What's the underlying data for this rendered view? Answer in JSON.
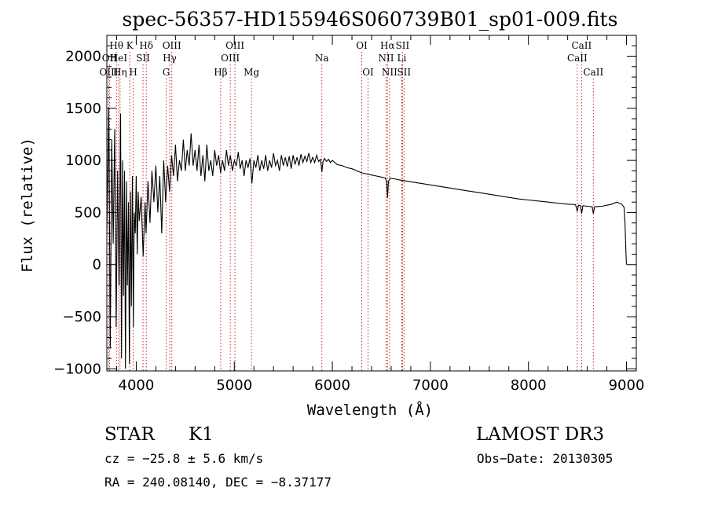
{
  "chart_data": {
    "type": "line",
    "title": "spec-56357-HD155946S060739B01_sp01-009.fits",
    "xlabel": "Wavelength (Å)",
    "ylabel": "Flux (relative)",
    "xlim": [
      3700,
      9100
    ],
    "ylim": [
      -1020,
      2200
    ],
    "xticks": [
      4000,
      5000,
      6000,
      7000,
      8000,
      9000
    ],
    "yticks": [
      -1000,
      -500,
      0,
      500,
      1000,
      1500,
      2000
    ],
    "series": [
      {
        "name": "Flux",
        "color": "#000000",
        "points": [
          [
            3700,
            300
          ],
          [
            3720,
            1500
          ],
          [
            3735,
            -800
          ],
          [
            3750,
            1200
          ],
          [
            3765,
            200
          ],
          [
            3780,
            1300
          ],
          [
            3795,
            -600
          ],
          [
            3810,
            900
          ],
          [
            3825,
            -200
          ],
          [
            3840,
            1450
          ],
          [
            3850,
            -900
          ],
          [
            3860,
            1000
          ],
          [
            3870,
            -300
          ],
          [
            3880,
            900
          ],
          [
            3890,
            -1000
          ],
          [
            3900,
            800
          ],
          [
            3910,
            -200
          ],
          [
            3920,
            600
          ],
          [
            3930,
            -950
          ],
          [
            3940,
            700
          ],
          [
            3950,
            -400
          ],
          [
            3960,
            850
          ],
          [
            3970,
            -600
          ],
          [
            3980,
            500
          ],
          [
            3990,
            300
          ],
          [
            4000,
            850
          ],
          [
            4010,
            100
          ],
          [
            4020,
            700
          ],
          [
            4030,
            420
          ],
          [
            4050,
            650
          ],
          [
            4070,
            80
          ],
          [
            4090,
            600
          ],
          [
            4100,
            300
          ],
          [
            4120,
            800
          ],
          [
            4140,
            400
          ],
          [
            4160,
            900
          ],
          [
            4180,
            600
          ],
          [
            4200,
            950
          ],
          [
            4220,
            500
          ],
          [
            4240,
            850
          ],
          [
            4260,
            300
          ],
          [
            4280,
            1000
          ],
          [
            4300,
            600
          ],
          [
            4320,
            950
          ],
          [
            4340,
            700
          ],
          [
            4360,
            1050
          ],
          [
            4380,
            850
          ],
          [
            4400,
            1150
          ],
          [
            4420,
            800
          ],
          [
            4440,
            1000
          ],
          [
            4460,
            900
          ],
          [
            4480,
            1200
          ],
          [
            4500,
            900
          ],
          [
            4520,
            1100
          ],
          [
            4540,
            950
          ],
          [
            4560,
            1260
          ],
          [
            4580,
            950
          ],
          [
            4600,
            1100
          ],
          [
            4620,
            900
          ],
          [
            4640,
            1150
          ],
          [
            4660,
            850
          ],
          [
            4680,
            1050
          ],
          [
            4700,
            800
          ],
          [
            4720,
            1150
          ],
          [
            4740,
            900
          ],
          [
            4760,
            1000
          ],
          [
            4780,
            850
          ],
          [
            4800,
            1100
          ],
          [
            4820,
            950
          ],
          [
            4840,
            1050
          ],
          [
            4860,
            880
          ],
          [
            4880,
            1000
          ],
          [
            4900,
            900
          ],
          [
            4920,
            1100
          ],
          [
            4940,
            950
          ],
          [
            4960,
            1050
          ],
          [
            4980,
            900
          ],
          [
            5000,
            1000
          ],
          [
            5020,
            950
          ],
          [
            5040,
            1080
          ],
          [
            5060,
            920
          ],
          [
            5080,
            1000
          ],
          [
            5100,
            850
          ],
          [
            5120,
            1000
          ],
          [
            5140,
            930
          ],
          [
            5160,
            1020
          ],
          [
            5180,
            780
          ],
          [
            5200,
            1000
          ],
          [
            5220,
            930
          ],
          [
            5240,
            1050
          ],
          [
            5260,
            900
          ],
          [
            5280,
            1000
          ],
          [
            5300,
            920
          ],
          [
            5320,
            1050
          ],
          [
            5340,
            900
          ],
          [
            5360,
            1000
          ],
          [
            5380,
            930
          ],
          [
            5400,
            1070
          ],
          [
            5420,
            950
          ],
          [
            5440,
            1000
          ],
          [
            5460,
            900
          ],
          [
            5480,
            1050
          ],
          [
            5500,
            950
          ],
          [
            5520,
            1030
          ],
          [
            5540,
            940
          ],
          [
            5560,
            1040
          ],
          [
            5580,
            920
          ],
          [
            5600,
            1050
          ],
          [
            5620,
            960
          ],
          [
            5640,
            1030
          ],
          [
            5660,
            950
          ],
          [
            5680,
            1060
          ],
          [
            5700,
            980
          ],
          [
            5720,
            1040
          ],
          [
            5740,
            990
          ],
          [
            5760,
            1070
          ],
          [
            5780,
            980
          ],
          [
            5800,
            1030
          ],
          [
            5820,
            980
          ],
          [
            5840,
            1050
          ],
          [
            5860,
            990
          ],
          [
            5880,
            1010
          ],
          [
            5893,
            890
          ],
          [
            5905,
            990
          ],
          [
            5920,
            1020
          ],
          [
            5940,
            990
          ],
          [
            5960,
            1010
          ],
          [
            5980,
            980
          ],
          [
            6000,
            1000
          ],
          [
            6050,
            960
          ],
          [
            6100,
            950
          ],
          [
            6150,
            930
          ],
          [
            6200,
            920
          ],
          [
            6250,
            900
          ],
          [
            6300,
            880
          ],
          [
            6350,
            870
          ],
          [
            6400,
            860
          ],
          [
            6450,
            850
          ],
          [
            6500,
            840
          ],
          [
            6540,
            830
          ],
          [
            6555,
            800
          ],
          [
            6563,
            640
          ],
          [
            6572,
            800
          ],
          [
            6590,
            830
          ],
          [
            6650,
            820
          ],
          [
            6700,
            810
          ],
          [
            6800,
            795
          ],
          [
            6900,
            780
          ],
          [
            7000,
            765
          ],
          [
            7100,
            750
          ],
          [
            7200,
            735
          ],
          [
            7300,
            720
          ],
          [
            7400,
            705
          ],
          [
            7500,
            690
          ],
          [
            7600,
            675
          ],
          [
            7700,
            660
          ],
          [
            7800,
            645
          ],
          [
            7900,
            630
          ],
          [
            8000,
            620
          ],
          [
            8100,
            610
          ],
          [
            8200,
            600
          ],
          [
            8300,
            590
          ],
          [
            8400,
            580
          ],
          [
            8480,
            575
          ],
          [
            8498,
            510
          ],
          [
            8510,
            570
          ],
          [
            8530,
            565
          ],
          [
            8542,
            490
          ],
          [
            8555,
            565
          ],
          [
            8600,
            560
          ],
          [
            8650,
            555
          ],
          [
            8662,
            490
          ],
          [
            8675,
            555
          ],
          [
            8750,
            560
          ],
          [
            8800,
            570
          ],
          [
            8850,
            580
          ],
          [
            8900,
            600
          ],
          [
            8950,
            580
          ],
          [
            8975,
            550
          ],
          [
            8985,
            400
          ],
          [
            8995,
            100
          ],
          [
            9000,
            0
          ]
        ]
      }
    ],
    "line_markers": [
      {
        "label": "Hθ",
        "wavelength": 3798,
        "row": 1
      },
      {
        "label": "OII",
        "wavelength": 3727,
        "row": 2
      },
      {
        "label": "OIII",
        "wavelength": 3720,
        "row": 3
      },
      {
        "label": "HeI",
        "wavelength": 3820,
        "row": 2
      },
      {
        "label": "Hη",
        "wavelength": 3835,
        "row": 3
      },
      {
        "label": "K",
        "wavelength": 3934,
        "row": 1
      },
      {
        "label": "SII",
        "wavelength": 4069,
        "row": 2
      },
      {
        "label": "H",
        "wavelength": 3969,
        "row": 3
      },
      {
        "label": "Hδ",
        "wavelength": 4102,
        "row": 1
      },
      {
        "label": "OIII",
        "wavelength": 4363,
        "row": 1
      },
      {
        "label": "Hγ",
        "wavelength": 4341,
        "row": 2
      },
      {
        "label": "G",
        "wavelength": 4305,
        "row": 3
      },
      {
        "label": "Hβ",
        "wavelength": 4861,
        "row": 3
      },
      {
        "label": "OIII",
        "wavelength": 4959,
        "row": 2
      },
      {
        "label": "OIII",
        "wavelength": 5007,
        "row": 1
      },
      {
        "label": "Mg",
        "wavelength": 5175,
        "row": 3
      },
      {
        "label": "Na",
        "wavelength": 5893,
        "row": 2
      },
      {
        "label": "OI",
        "wavelength": 6300,
        "row": 1
      },
      {
        "label": "OI",
        "wavelength": 6364,
        "row": 3
      },
      {
        "label": "Hα",
        "wavelength": 6563,
        "row": 1
      },
      {
        "label": "NII",
        "wavelength": 6548,
        "row": 2
      },
      {
        "label": "NII",
        "wavelength": 6583,
        "row": 3
      },
      {
        "label": "SII",
        "wavelength": 6716,
        "row": 1
      },
      {
        "label": "Li",
        "wavelength": 6708,
        "row": 2
      },
      {
        "label": "SII",
        "wavelength": 6731,
        "row": 3
      },
      {
        "label": "CaII",
        "wavelength": 8542,
        "row": 1
      },
      {
        "label": "CaII",
        "wavelength": 8498,
        "row": 2
      },
      {
        "label": "CaII",
        "wavelength": 8662,
        "row": 3
      }
    ]
  },
  "info": {
    "object_class": "STAR",
    "subclass": "K1",
    "survey": "LAMOST DR3",
    "redshift": "cz = −25.8 ± 5.6 km/s",
    "obs_date": "Obs−Date: 20130305",
    "coords": "RA = 240.08140, DEC =  −8.37177"
  }
}
